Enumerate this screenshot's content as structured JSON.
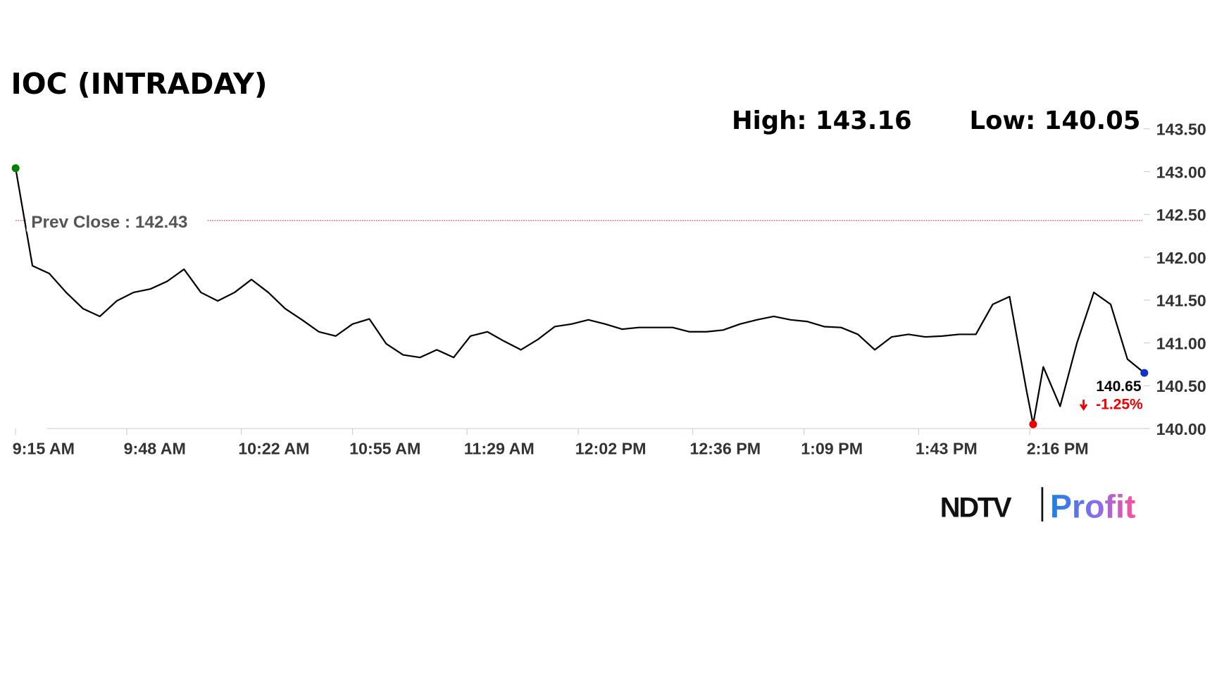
{
  "chart_data": {
    "type": "line",
    "title": "IOC (INTRADAY)",
    "high": {
      "value": 143.16,
      "label": "High: 143.16"
    },
    "low": {
      "value": 140.05,
      "label": "Low: 140.05"
    },
    "prev_close": {
      "value": 142.43,
      "label": "Prev Close : 142.43"
    },
    "last": {
      "value": 140.65,
      "label": "140.65"
    },
    "change": {
      "value": -1.25,
      "label": "-1.25%"
    },
    "x": [
      "9:15 AM",
      "9:20 AM",
      "9:25 AM",
      "9:30 AM",
      "9:35 AM",
      "9:40 AM",
      "9:45 AM",
      "9:50 AM",
      "9:55 AM",
      "10:00 AM",
      "10:05 AM",
      "10:10 AM",
      "10:15 AM",
      "10:20 AM",
      "10:25 AM",
      "10:30 AM",
      "10:35 AM",
      "10:40 AM",
      "10:45 AM",
      "10:50 AM",
      "10:55 AM",
      "11:00 AM",
      "11:05 AM",
      "11:10 AM",
      "11:15 AM",
      "11:20 AM",
      "11:25 AM",
      "11:30 AM",
      "11:35 AM",
      "11:40 AM",
      "11:45 AM",
      "11:50 AM",
      "11:55 AM",
      "12:00 PM",
      "12:05 PM",
      "12:10 PM",
      "12:15 PM",
      "12:20 PM",
      "12:25 PM",
      "12:30 PM",
      "12:35 PM",
      "12:40 PM",
      "12:45 PM",
      "12:50 PM",
      "12:55 PM",
      "1:00 PM",
      "1:05 PM",
      "1:10 PM",
      "1:15 PM",
      "1:20 PM",
      "1:25 PM",
      "1:30 PM",
      "1:35 PM",
      "1:40 PM",
      "1:45 PM",
      "1:50 PM",
      "1:55 PM",
      "2:00 PM",
      "2:05 PM",
      "2:10 PM",
      "2:15 PM",
      "2:17 PM",
      "2:20 PM",
      "2:25 PM",
      "2:30 PM",
      "2:35 PM",
      "2:40 PM",
      "2:45 PM",
      "2:50 PM"
    ],
    "series": [
      {
        "color": "#000000",
        "values": [
          143.04,
          141.9,
          141.81,
          141.59,
          141.4,
          141.31,
          141.49,
          141.59,
          141.63,
          141.72,
          141.86,
          141.59,
          141.49,
          141.59,
          141.74,
          141.59,
          141.4,
          141.27,
          141.13,
          141.08,
          141.22,
          141.28,
          140.99,
          140.86,
          140.83,
          140.92,
          140.83,
          141.08,
          141.13,
          141.02,
          140.92,
          141.04,
          141.19,
          141.22,
          141.27,
          141.22,
          141.16,
          141.18,
          141.18,
          141.18,
          141.13,
          141.13,
          141.15,
          141.22,
          141.27,
          141.31,
          141.27,
          141.25,
          141.19,
          141.18,
          141.1,
          140.92,
          141.07,
          141.1,
          141.07,
          141.08,
          141.1,
          141.1,
          141.45,
          141.54,
          140.45,
          140.05,
          140.72,
          140.26,
          141.0,
          141.59,
          141.45,
          140.81,
          140.65
        ]
      }
    ],
    "xticks": [
      "9:15 AM",
      "9:48 AM",
      "10:22 AM",
      "10:55 AM",
      "11:29 AM",
      "12:02 PM",
      "12:36 PM",
      "1:09 PM",
      "1:43 PM",
      "2:16 PM"
    ],
    "ylim": [
      140,
      143.5
    ],
    "yticks": [
      {
        "value": 140,
        "label": "140.00"
      },
      {
        "value": 140.5,
        "label": "140.50"
      },
      {
        "value": 141,
        "label": "141.00"
      },
      {
        "value": 141.5,
        "label": "141.50"
      },
      {
        "value": 142,
        "label": "142.00"
      },
      {
        "value": 142.5,
        "label": "142.50"
      },
      {
        "value": 143,
        "label": "143.00"
      },
      {
        "value": 143.5,
        "label": "143.50"
      }
    ]
  },
  "logo": {
    "left": "NDTV",
    "right": "Profit"
  }
}
